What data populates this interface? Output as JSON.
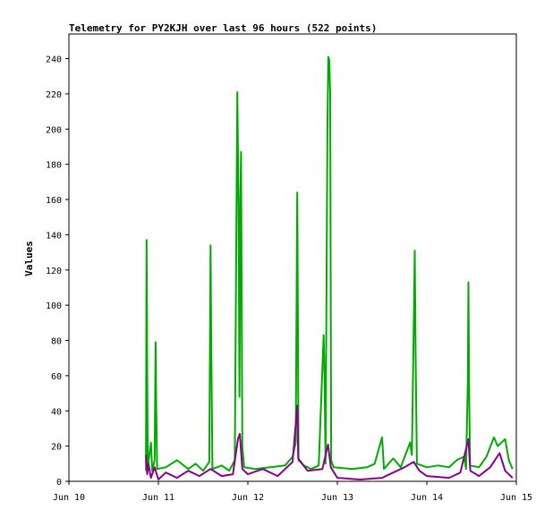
{
  "chart_data": {
    "type": "line",
    "title": "Telemetry for PY2KJH over last 96 hours (522 points)",
    "xlabel": "",
    "ylabel": "Values",
    "xlim": [
      "2024-06-10T00:00",
      "2024-06-15T00:00"
    ],
    "ylim": [
      0,
      254
    ],
    "x_tick_labels": [
      "Jun 10",
      "Jun 11",
      "Jun 12",
      "Jun 13",
      "Jun 14",
      "Jun 15"
    ],
    "x_ticks": [
      "2024-06-10T00:00",
      "2024-06-11T00:00",
      "2024-06-12T00:00",
      "2024-06-13T00:00",
      "2024-06-14T00:00",
      "2024-06-15T00:00"
    ],
    "y_ticks": [
      0,
      20,
      40,
      60,
      80,
      100,
      120,
      140,
      160,
      180,
      200,
      220,
      240
    ],
    "grid": false,
    "legend": "none",
    "series": [
      {
        "color": "#00aa00",
        "points": [
          [
            "2024-06-10T20:40",
            6
          ],
          [
            "2024-06-10T20:50",
            137
          ],
          [
            "2024-06-10T21:00",
            62
          ],
          [
            "2024-06-10T21:10",
            8
          ],
          [
            "2024-06-10T22:00",
            22
          ],
          [
            "2024-06-10T22:20",
            6
          ],
          [
            "2024-06-10T23:00",
            12
          ],
          [
            "2024-06-10T23:15",
            79
          ],
          [
            "2024-06-10T23:25",
            43
          ],
          [
            "2024-06-10T23:40",
            7
          ],
          [
            "2024-06-11T02:00",
            8
          ],
          [
            "2024-06-11T05:00",
            12
          ],
          [
            "2024-06-11T08:00",
            7
          ],
          [
            "2024-06-11T10:00",
            10
          ],
          [
            "2024-06-11T12:00",
            6
          ],
          [
            "2024-06-11T13:40",
            11
          ],
          [
            "2024-06-11T14:00",
            134
          ],
          [
            "2024-06-11T14:10",
            83
          ],
          [
            "2024-06-11T14:30",
            7
          ],
          [
            "2024-06-11T17:00",
            9
          ],
          [
            "2024-06-11T19:00",
            6
          ],
          [
            "2024-06-11T20:30",
            12
          ],
          [
            "2024-06-11T21:10",
            221
          ],
          [
            "2024-06-11T21:30",
            155
          ],
          [
            "2024-06-11T21:45",
            48
          ],
          [
            "2024-06-11T22:00",
            163
          ],
          [
            "2024-06-11T22:10",
            187
          ],
          [
            "2024-06-11T22:30",
            20
          ],
          [
            "2024-06-11T23:00",
            8
          ],
          [
            "2024-06-12T02:00",
            7
          ],
          [
            "2024-06-12T06:00",
            8
          ],
          [
            "2024-06-12T10:00",
            9
          ],
          [
            "2024-06-12T12:00",
            14
          ],
          [
            "2024-06-12T12:50",
            22
          ],
          [
            "2024-06-12T13:15",
            164
          ],
          [
            "2024-06-12T13:25",
            93
          ],
          [
            "2024-06-12T13:35",
            12
          ],
          [
            "2024-06-12T15:00",
            9
          ],
          [
            "2024-06-12T17:00",
            7
          ],
          [
            "2024-06-12T19:00",
            9
          ],
          [
            "2024-06-12T20:20",
            83
          ],
          [
            "2024-06-12T20:35",
            56
          ],
          [
            "2024-06-12T20:50",
            10
          ],
          [
            "2024-06-12T21:20",
            200
          ],
          [
            "2024-06-12T21:35",
            241
          ],
          [
            "2024-06-12T21:50",
            239
          ],
          [
            "2024-06-12T22:05",
            220
          ],
          [
            "2024-06-12T22:20",
            12
          ],
          [
            "2024-06-12T23:00",
            8
          ],
          [
            "2024-06-13T04:00",
            7
          ],
          [
            "2024-06-13T08:00",
            8
          ],
          [
            "2024-06-13T10:00",
            10
          ],
          [
            "2024-06-13T12:00",
            25
          ],
          [
            "2024-06-13T12:30",
            7
          ],
          [
            "2024-06-13T15:00",
            13
          ],
          [
            "2024-06-13T17:00",
            8
          ],
          [
            "2024-06-13T19:30",
            22
          ],
          [
            "2024-06-13T20:00",
            15
          ],
          [
            "2024-06-13T20:30",
            89
          ],
          [
            "2024-06-13T20:45",
            131
          ],
          [
            "2024-06-13T21:00",
            70
          ],
          [
            "2024-06-13T21:20",
            10
          ],
          [
            "2024-06-14T00:00",
            8
          ],
          [
            "2024-06-14T03:00",
            9
          ],
          [
            "2024-06-14T06:00",
            8
          ],
          [
            "2024-06-14T08:00",
            12
          ],
          [
            "2024-06-14T10:00",
            14
          ],
          [
            "2024-06-14T10:30",
            7
          ],
          [
            "2024-06-14T11:00",
            56
          ],
          [
            "2024-06-14T11:10",
            113
          ],
          [
            "2024-06-14T11:20",
            57
          ],
          [
            "2024-06-14T11:35",
            9
          ],
          [
            "2024-06-14T14:00",
            8
          ],
          [
            "2024-06-14T16:00",
            14
          ],
          [
            "2024-06-14T18:00",
            25
          ],
          [
            "2024-06-14T19:00",
            20
          ],
          [
            "2024-06-14T21:00",
            24
          ],
          [
            "2024-06-14T22:00",
            12
          ],
          [
            "2024-06-14T23:00",
            7
          ]
        ]
      },
      {
        "color": "#880088",
        "points": [
          [
            "2024-06-10T20:40",
            15
          ],
          [
            "2024-06-10T21:00",
            4
          ],
          [
            "2024-06-10T21:20",
            10
          ],
          [
            "2024-06-10T22:00",
            2
          ],
          [
            "2024-06-10T23:00",
            8
          ],
          [
            "2024-06-11T00:00",
            1
          ],
          [
            "2024-06-11T02:00",
            5
          ],
          [
            "2024-06-11T05:00",
            2
          ],
          [
            "2024-06-11T08:00",
            6
          ],
          [
            "2024-06-11T11:00",
            3
          ],
          [
            "2024-06-11T14:00",
            7
          ],
          [
            "2024-06-11T17:00",
            3
          ],
          [
            "2024-06-11T20:00",
            4
          ],
          [
            "2024-06-11T21:20",
            24
          ],
          [
            "2024-06-11T21:50",
            27
          ],
          [
            "2024-06-11T22:30",
            7
          ],
          [
            "2024-06-12T00:00",
            4
          ],
          [
            "2024-06-12T04:00",
            7
          ],
          [
            "2024-06-12T08:00",
            3
          ],
          [
            "2024-06-12T12:00",
            11
          ],
          [
            "2024-06-12T13:15",
            43
          ],
          [
            "2024-06-12T13:30",
            13
          ],
          [
            "2024-06-12T16:00",
            6
          ],
          [
            "2024-06-12T20:00",
            7
          ],
          [
            "2024-06-12T21:30",
            21
          ],
          [
            "2024-06-12T22:15",
            8
          ],
          [
            "2024-06-13T00:00",
            2
          ],
          [
            "2024-06-13T06:00",
            1
          ],
          [
            "2024-06-13T12:00",
            2
          ],
          [
            "2024-06-13T15:00",
            5
          ],
          [
            "2024-06-13T18:00",
            8
          ],
          [
            "2024-06-13T20:30",
            11
          ],
          [
            "2024-06-13T22:00",
            6
          ],
          [
            "2024-06-14T00:00",
            3
          ],
          [
            "2024-06-14T06:00",
            2
          ],
          [
            "2024-06-14T09:00",
            5
          ],
          [
            "2024-06-14T11:10",
            24
          ],
          [
            "2024-06-14T11:40",
            6
          ],
          [
            "2024-06-14T14:00",
            3
          ],
          [
            "2024-06-14T17:00",
            8
          ],
          [
            "2024-06-14T19:30",
            16
          ],
          [
            "2024-06-14T21:00",
            6
          ],
          [
            "2024-06-14T23:00",
            2
          ]
        ]
      }
    ]
  }
}
